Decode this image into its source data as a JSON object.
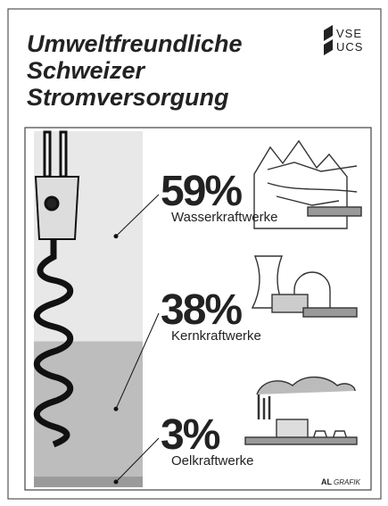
{
  "chart_data": {
    "type": "stacked-column",
    "title_lines": [
      "Umweltfreundliche",
      "Schweizer",
      "Stromversorgung"
    ],
    "logo": [
      "VSE",
      "UCS"
    ],
    "credit": [
      "AL",
      "GRAFIK"
    ],
    "ylim": [
      0,
      100
    ],
    "series": [
      {
        "name": "Wasserkraftwerke",
        "color": "#e8e8e8",
        "values": [
          59
        ],
        "value_labels": [
          "59%"
        ]
      },
      {
        "name": "Kernkraftwerke",
        "color": "#bdbdbd",
        "values": [
          38
        ],
        "value_labels": [
          "38%"
        ]
      },
      {
        "name": "Oelkraftwerke",
        "color": "#9a9a9a",
        "values": [
          3
        ],
        "value_labels": [
          "3%"
        ]
      }
    ]
  }
}
